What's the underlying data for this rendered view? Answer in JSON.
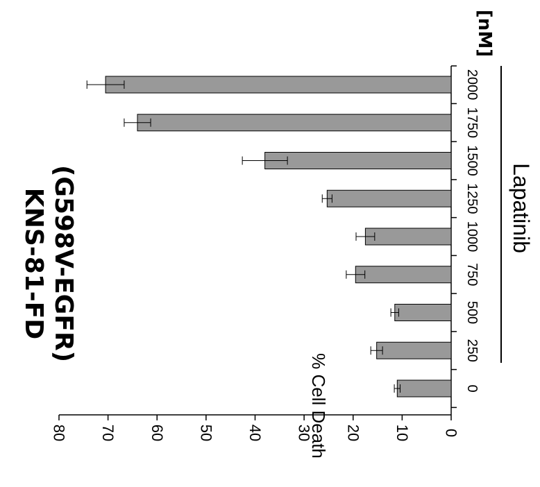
{
  "chart_data": {
    "type": "bar",
    "orientation": "rotated-90",
    "title": [
      "KNS-81-FD",
      "(G598V-EGFR)"
    ],
    "drug_label": "Lapatinib",
    "unit_label": "[nM]",
    "ylabel": "% Cell Death",
    "ylim": [
      0,
      80
    ],
    "yticks": [
      0,
      10,
      20,
      30,
      40,
      50,
      60,
      70,
      80
    ],
    "categories": [
      "0",
      "250",
      "500",
      "750",
      "1000",
      "1250",
      "1500",
      "1750",
      "2000"
    ],
    "values": [
      11,
      15.2,
      11.5,
      19.5,
      17.5,
      25.3,
      38,
      64,
      70.5
    ],
    "errors": [
      0.6,
      1.2,
      0.8,
      1.9,
      1.9,
      1.0,
      4.6,
      2.7,
      3.8
    ],
    "bar_color": "#999999"
  }
}
